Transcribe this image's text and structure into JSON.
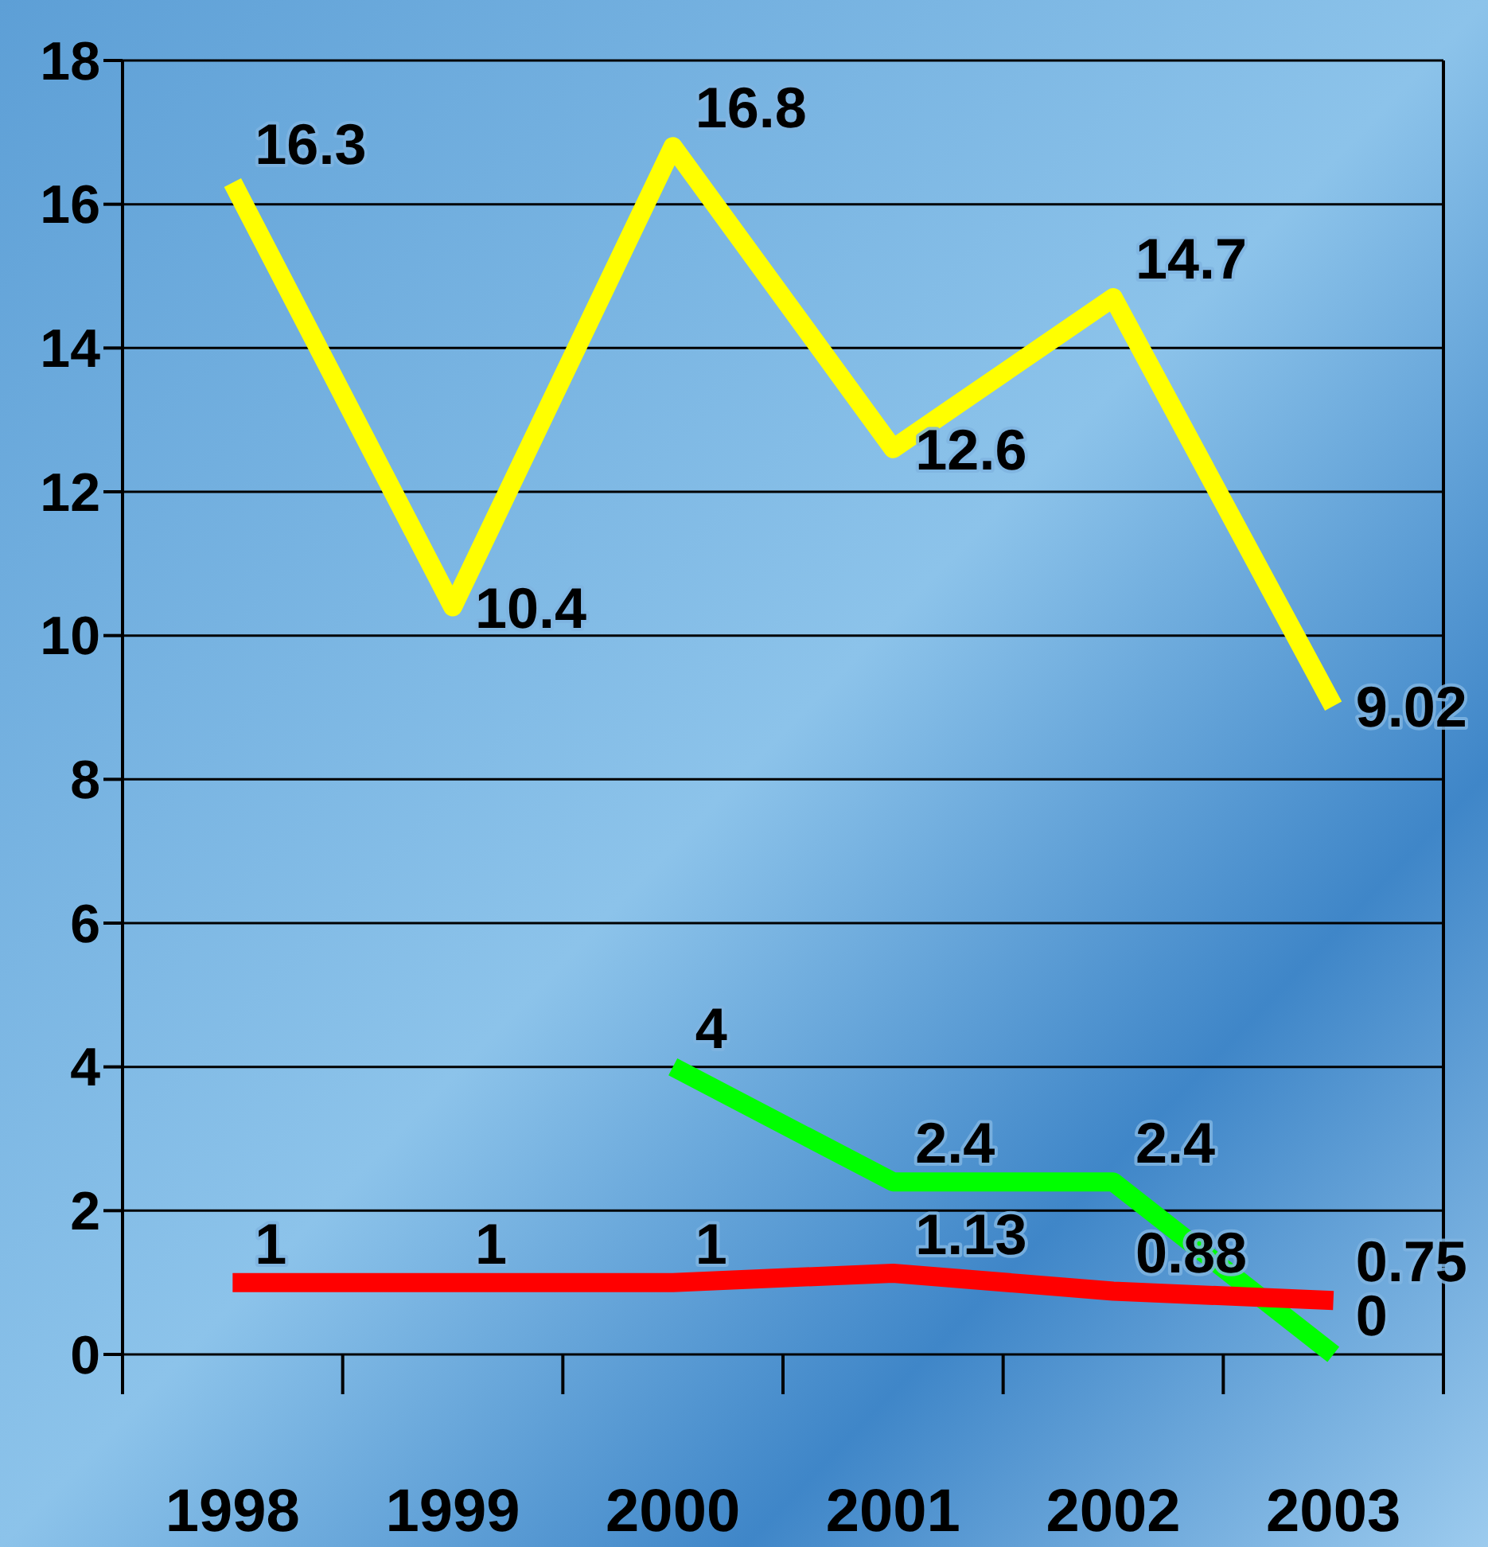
{
  "chart_data": {
    "type": "line",
    "categories": [
      "1998",
      "1999",
      "2000",
      "2001",
      "2002",
      "2003"
    ],
    "series": [
      {
        "color": "#ffff00",
        "values": [
          16.3,
          10.4,
          16.8,
          12.6,
          14.7,
          9.02
        ]
      },
      {
        "color": "#00ff00",
        "values": [
          null,
          null,
          4,
          2.4,
          2.4,
          0
        ]
      },
      {
        "color": "#ff0000",
        "values": [
          1,
          1,
          1,
          1.13,
          0.88,
          0.75
        ]
      }
    ],
    "ylim": [
      0,
      18
    ],
    "yticks": [
      0,
      2,
      4,
      6,
      8,
      10,
      12,
      14,
      16,
      18
    ],
    "grid": "y",
    "data_labels": true,
    "marker": "none",
    "line_style": "solid"
  }
}
